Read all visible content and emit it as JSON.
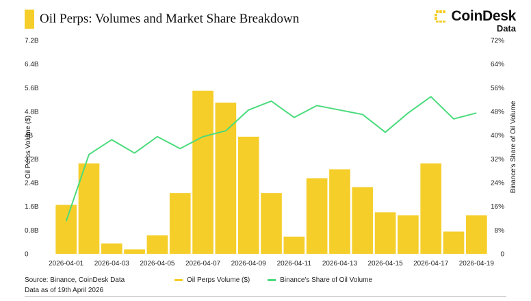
{
  "header": {
    "title": "Oil Perps: Volumes and Market Share Breakdown"
  },
  "brand": {
    "name": "CoinDesk",
    "sub": "Data",
    "logo_icon": "coindesk-logo-icon"
  },
  "colors": {
    "bar": "#F5CE2A",
    "line": "#4ADB7C",
    "accent": "#F5CE2A"
  },
  "chart_data": {
    "type": "bar+line",
    "categories": [
      "2026-04-01",
      "2026-04-02",
      "2026-04-03",
      "2026-04-04",
      "2026-04-05",
      "2026-04-06",
      "2026-04-07",
      "2026-04-08",
      "2026-04-09",
      "2026-04-10",
      "2026-04-11",
      "2026-04-12",
      "2026-04-13",
      "2026-04-14",
      "2026-04-15",
      "2026-04-16",
      "2026-04-17",
      "2026-04-18",
      "2026-04-19"
    ],
    "x_tick_labels": [
      "2026-04-01",
      "2026-04-03",
      "2026-04-05",
      "2026-04-07",
      "2026-04-09",
      "2026-04-11",
      "2026-04-13",
      "2026-04-15",
      "2026-04-17",
      "2026-04-19"
    ],
    "series": [
      {
        "name": "Oil Perps Volume ($)",
        "type": "bar",
        "axis": "left",
        "values": [
          1.65,
          3.05,
          0.35,
          0.15,
          0.62,
          2.05,
          5.5,
          5.1,
          3.95,
          2.05,
          0.58,
          2.55,
          2.85,
          2.25,
          1.4,
          1.3,
          3.05,
          0.75,
          1.3
        ]
      },
      {
        "name": "Binance's Share of Oil Volume",
        "type": "line",
        "axis": "right",
        "values": [
          11,
          33.5,
          38.5,
          34,
          39.5,
          35.5,
          39.5,
          41.5,
          48.5,
          51.5,
          46,
          50,
          48.5,
          47,
          41,
          47.5,
          53,
          45.5,
          47.5
        ]
      }
    ],
    "ylabel_left": "Oil Perps Volume ($)",
    "ylabel_right": "Binance's Share of Oil Volume",
    "ylim_left": [
      0,
      7.2
    ],
    "ylim_right": [
      0,
      72
    ],
    "y_ticks_left": [
      "0",
      "0.8B",
      "1.6B",
      "2.4B",
      "3.2B",
      "4B",
      "4.8B",
      "5.6B",
      "6.4B",
      "7.2B"
    ],
    "y_ticks_right": [
      "0",
      "8%",
      "16%",
      "24%",
      "32%",
      "40%",
      "48%",
      "56%",
      "64%",
      "72%"
    ],
    "grid": false,
    "legend_position": "bottom-center"
  },
  "footer": {
    "source": "Source: Binance, CoinDesk Data",
    "asof": "Data as of 19th April 2026"
  }
}
